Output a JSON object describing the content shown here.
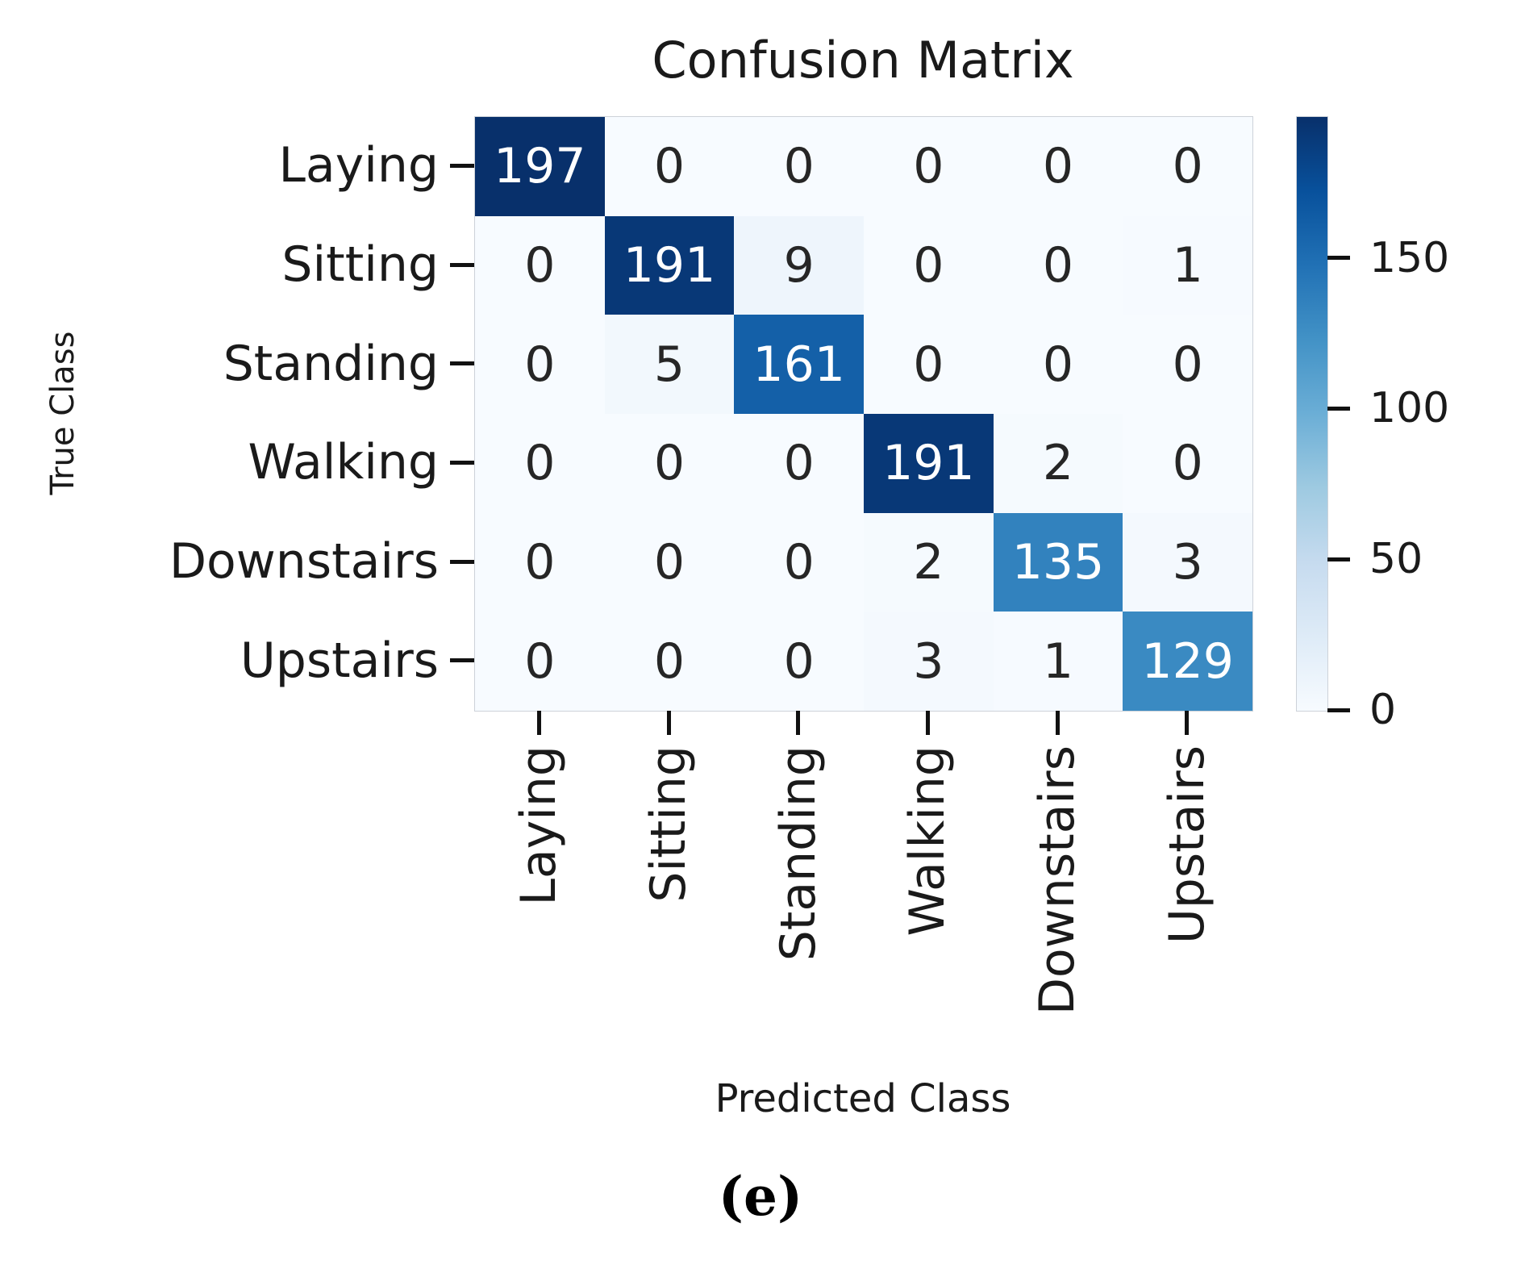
{
  "page": {
    "background": "#ffffff",
    "caption": "(e)"
  },
  "chart_data": {
    "type": "heatmap",
    "title": "Confusion Matrix",
    "xlabel": "Predicted Class",
    "ylabel": "True Class",
    "x_categories": [
      "Laying",
      "Sitting",
      "Standing",
      "Walking",
      "Downstairs",
      "Upstairs"
    ],
    "y_categories": [
      "Laying",
      "Sitting",
      "Standing",
      "Walking",
      "Downstairs",
      "Upstairs"
    ],
    "matrix": [
      [
        197,
        0,
        0,
        0,
        0,
        0
      ],
      [
        0,
        191,
        9,
        0,
        0,
        1
      ],
      [
        0,
        5,
        161,
        0,
        0,
        0
      ],
      [
        0,
        0,
        0,
        191,
        2,
        0
      ],
      [
        0,
        0,
        0,
        2,
        135,
        3
      ],
      [
        0,
        0,
        0,
        3,
        1,
        129
      ]
    ],
    "vmin": 0,
    "vmax": 197,
    "colormap": "Blues",
    "colormap_stops": [
      "#f7fbff",
      "#deebf7",
      "#c6dbef",
      "#9ecae1",
      "#6baed6",
      "#4292c6",
      "#2171b5",
      "#08519c",
      "#08306b"
    ],
    "colorbar_ticks": [
      0,
      50,
      100,
      150
    ],
    "colorbar_position": "right",
    "grid": false,
    "value_text_color_high": "#ffffff",
    "value_text_color_low": "#262626",
    "tick_color": "#111111",
    "spine_color": "#cdd2d9"
  }
}
